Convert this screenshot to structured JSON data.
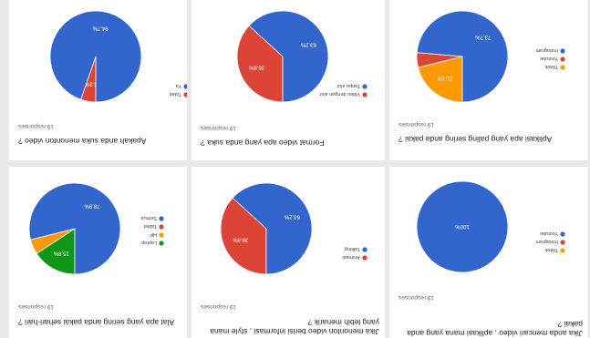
{
  "chart_data": [
    {
      "type": "pie",
      "question": "Apakah anda suka menonton video ?",
      "responses": "19 responses",
      "legend": [
        "Tidak",
        "Ya"
      ],
      "values": [
        5.3,
        94.7
      ],
      "colors": [
        "#db4437",
        "#3366cc"
      ],
      "value_labels": [
        "5.3%",
        "94.7%"
      ]
    },
    {
      "type": "pie",
      "question": "Format video apa yang anda suka ?",
      "responses": "19 responses",
      "legend": [
        "Video dengan alur",
        "Tanpa alur"
      ],
      "values": [
        36.8,
        63.2
      ],
      "colors": [
        "#db4437",
        "#3366cc"
      ],
      "value_labels": [
        "36.8%",
        "63.2%"
      ]
    },
    {
      "type": "pie",
      "question": "Aplikasi apa yang paling sering anda pakai ?",
      "responses": "19 responses",
      "legend": [
        "Tiktok",
        "Youtube",
        "Instagram"
      ],
      "values": [
        21.1,
        5.3,
        73.7
      ],
      "colors": [
        "#ff9900",
        "#db4437",
        "#3366cc"
      ],
      "value_labels": [
        "21.1%",
        "",
        "73.7%"
      ]
    },
    {
      "type": "pie",
      "question": "Alat apa yang sering anda pakai sehari-hari ?",
      "responses": "19 responses",
      "legend": [
        "Laptop",
        "HP",
        "Tablet",
        "Semua"
      ],
      "values": [
        15.8,
        5.3,
        0,
        78.9
      ],
      "colors": [
        "#109618",
        "#ff9900",
        "#db4437",
        "#3366cc"
      ],
      "value_labels": [
        "15.8%",
        "",
        "",
        "78.9%"
      ]
    },
    {
      "type": "pie",
      "question": "Jika menonton video berisi informasi , style mana yang lebih menarik ?",
      "responses": "19 responses",
      "legend": [
        "Animasi",
        "Talking"
      ],
      "values": [
        36.8,
        63.2
      ],
      "colors": [
        "#db4437",
        "#3366cc"
      ],
      "value_labels": [
        "36.8%",
        "63.2%"
      ]
    },
    {
      "type": "pie",
      "question": "Jika anda mencari video , aplikasi mana yang anda pakai ?",
      "responses": "19 responses",
      "legend": [
        "Tiktok",
        "Instagram",
        "Youtube"
      ],
      "values": [
        0,
        0,
        100
      ],
      "colors": [
        "#ff9900",
        "#db4437",
        "#3366cc"
      ],
      "value_labels": [
        "",
        "",
        "100%"
      ]
    }
  ]
}
